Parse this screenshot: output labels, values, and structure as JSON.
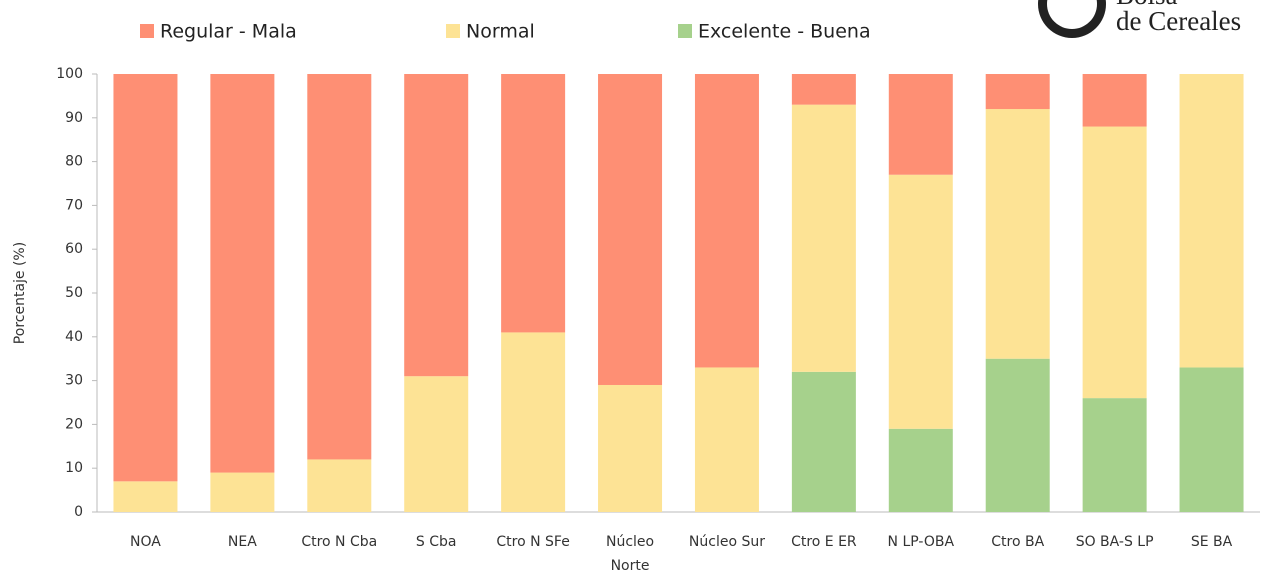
{
  "chart_data": {
    "type": "stacked_bar",
    "logo": [
      "Bolsa",
      "de Cereales"
    ],
    "y_label": "Porcentaje (%)",
    "categories": [
      "NOA",
      "NEA",
      "Ctro N Cba",
      "S Cba",
      "Ctro N SFe",
      "Núcleo Norte",
      "Núcleo Sur",
      "Ctro E ER",
      "N LP-OBA",
      "Ctro BA",
      "SO BA-S LP",
      "SE BA"
    ],
    "series": [
      {
        "name": "Regular - Mala",
        "color": "#fe8f74",
        "values": [
          93,
          91,
          88,
          69,
          59,
          71,
          67,
          7,
          23,
          8,
          12,
          0
        ]
      },
      {
        "name": "Normal",
        "color": "#fde395",
        "values": [
          7,
          9,
          12,
          31,
          41,
          29,
          33,
          61,
          58,
          57,
          62,
          67
        ]
      },
      {
        "name": "Excelente - Buena",
        "color": "#a6d18c",
        "values": [
          0,
          0,
          0,
          0,
          0,
          0,
          0,
          32,
          19,
          35,
          26,
          33
        ]
      }
    ],
    "ylim": [
      0,
      100
    ],
    "yticks": [
      0,
      10,
      20,
      30,
      40,
      50,
      60,
      70,
      80,
      90,
      100
    ],
    "grid": false
  }
}
